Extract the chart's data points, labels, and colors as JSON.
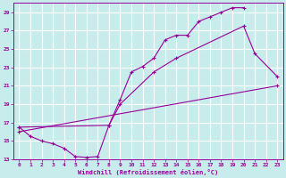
{
  "xlabel": "Windchill (Refroidissement éolien,°C)",
  "bg_color": "#c8ecec",
  "grid_color": "#ffffff",
  "line_color": "#990099",
  "xlim": [
    -0.5,
    23.5
  ],
  "ylim": [
    13,
    30
  ],
  "xticks": [
    0,
    1,
    2,
    3,
    4,
    5,
    6,
    7,
    8,
    9,
    10,
    11,
    12,
    13,
    14,
    15,
    16,
    17,
    18,
    19,
    20,
    21,
    22,
    23
  ],
  "yticks": [
    13,
    15,
    17,
    19,
    21,
    23,
    25,
    27,
    29
  ],
  "series1_x": [
    0,
    1,
    2,
    3,
    4,
    5,
    6,
    7,
    8,
    9,
    10,
    11,
    12,
    13,
    14,
    15,
    16,
    17,
    18,
    19,
    20
  ],
  "series1_y": [
    16.5,
    15.5,
    15.0,
    14.7,
    14.2,
    13.3,
    13.2,
    13.3,
    16.7,
    19.5,
    22.5,
    23.1,
    24.0,
    26.0,
    26.5,
    26.5,
    28.0,
    28.5,
    29.0,
    29.5,
    29.5
  ],
  "series2_x": [
    0,
    8,
    9,
    12,
    14,
    20,
    21,
    23
  ],
  "series2_y": [
    16.5,
    16.7,
    19.0,
    22.5,
    24.0,
    27.5,
    24.5,
    22.0
  ],
  "series3_x": [
    0,
    23
  ],
  "series3_y": [
    16.0,
    21.0
  ]
}
